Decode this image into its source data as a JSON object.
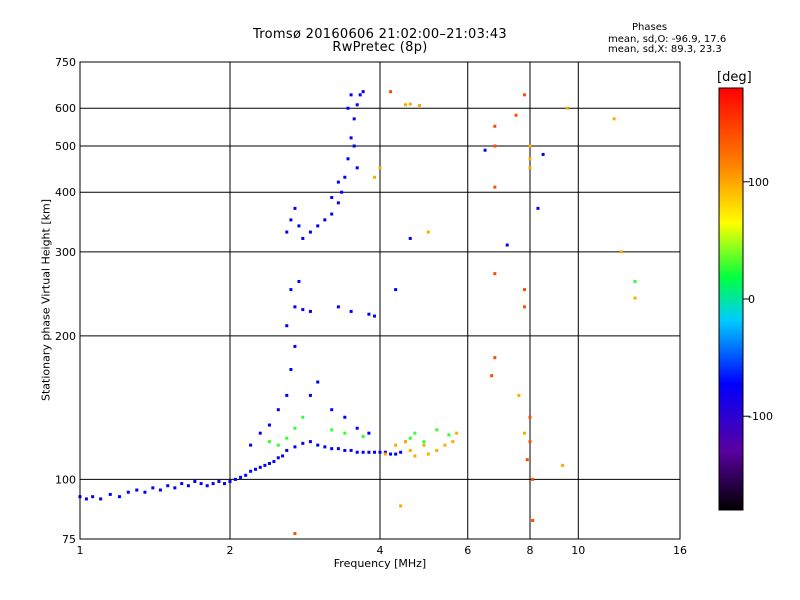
{
  "chart_data": {
    "type": "scatter",
    "title": "Tromsø 20160606 21:02:00–21:03:43",
    "subtitle": "RwPretec (8p)",
    "phases_header": "Phases",
    "phases_o": "mean, sd,O: -96.9, 17.6",
    "phases_x": "mean, sd,X:  89.3, 23.3",
    "xlabel": "Frequency [MHz]",
    "ylabel": "Stationary phase Virtual Height [km]",
    "xscale": "log",
    "yscale": "log",
    "xlim": [
      1,
      16
    ],
    "ylim": [
      75,
      750
    ],
    "xticks": [
      "1",
      "2",
      "4",
      "6",
      "8",
      "10",
      "16"
    ],
    "xtick_values": [
      1,
      2,
      4,
      6,
      8,
      10,
      16
    ],
    "yticks": [
      "75",
      "100",
      "200",
      "300",
      "400",
      "500",
      "600",
      "750"
    ],
    "ytick_values": [
      75,
      100,
      200,
      300,
      400,
      500,
      600,
      750
    ],
    "grid": true,
    "colorbar": {
      "label": "[deg]",
      "range": [
        -180,
        180
      ],
      "ticks": [
        "100",
        "0",
        "-100"
      ],
      "tick_values": [
        100,
        0,
        -100
      ]
    },
    "series": [
      {
        "phase_deg": -100,
        "points": [
          [
            1.0,
            92
          ],
          [
            1.03,
            91
          ],
          [
            1.06,
            92
          ],
          [
            1.1,
            91
          ],
          [
            1.15,
            93
          ],
          [
            1.2,
            92
          ],
          [
            1.25,
            94
          ],
          [
            1.3,
            95
          ],
          [
            1.35,
            94
          ],
          [
            1.4,
            96
          ],
          [
            1.45,
            95
          ],
          [
            1.5,
            97
          ],
          [
            1.55,
            96
          ],
          [
            1.6,
            98
          ],
          [
            1.65,
            97
          ],
          [
            1.7,
            99
          ],
          [
            1.75,
            98
          ],
          [
            1.8,
            97
          ],
          [
            1.85,
            98
          ],
          [
            1.9,
            99
          ],
          [
            1.95,
            98
          ],
          [
            2.0,
            99
          ],
          [
            2.05,
            100
          ],
          [
            2.1,
            101
          ],
          [
            2.15,
            102
          ],
          [
            2.2,
            104
          ],
          [
            2.25,
            105
          ],
          [
            2.3,
            106
          ],
          [
            2.35,
            107
          ],
          [
            2.4,
            108
          ],
          [
            2.45,
            109
          ],
          [
            2.5,
            111
          ],
          [
            2.55,
            112
          ],
          [
            2.6,
            115
          ],
          [
            2.7,
            117
          ],
          [
            2.8,
            119
          ],
          [
            2.9,
            120
          ],
          [
            3.0,
            118
          ],
          [
            3.1,
            117
          ],
          [
            3.2,
            116
          ],
          [
            3.3,
            116
          ],
          [
            3.4,
            115
          ],
          [
            3.5,
            115
          ],
          [
            3.6,
            114
          ],
          [
            3.7,
            114
          ],
          [
            3.8,
            114
          ],
          [
            3.9,
            114
          ],
          [
            4.0,
            114
          ],
          [
            4.1,
            114
          ],
          [
            4.2,
            113
          ],
          [
            4.3,
            113
          ],
          [
            4.4,
            114
          ],
          [
            2.6,
            150
          ],
          [
            2.65,
            170
          ],
          [
            2.7,
            190
          ],
          [
            2.6,
            210
          ],
          [
            2.7,
            230
          ],
          [
            2.65,
            250
          ],
          [
            2.75,
            260
          ],
          [
            2.9,
            150
          ],
          [
            3.0,
            160
          ],
          [
            3.2,
            140
          ],
          [
            3.4,
            135
          ],
          [
            3.6,
            128
          ],
          [
            3.8,
            125
          ],
          [
            2.5,
            140
          ],
          [
            2.4,
            130
          ],
          [
            2.3,
            125
          ],
          [
            2.2,
            118
          ],
          [
            2.6,
            330
          ],
          [
            2.65,
            350
          ],
          [
            2.7,
            370
          ],
          [
            2.75,
            340
          ],
          [
            2.8,
            320
          ],
          [
            2.9,
            330
          ],
          [
            3.0,
            340
          ],
          [
            3.1,
            350
          ],
          [
            3.2,
            360
          ],
          [
            3.3,
            380
          ],
          [
            3.35,
            400
          ],
          [
            3.4,
            430
          ],
          [
            3.45,
            470
          ],
          [
            3.5,
            520
          ],
          [
            3.55,
            570
          ],
          [
            3.6,
            610
          ],
          [
            3.65,
            640
          ],
          [
            3.7,
            650
          ],
          [
            3.45,
            600
          ],
          [
            3.5,
            640
          ],
          [
            3.55,
            500
          ],
          [
            3.6,
            450
          ],
          [
            3.3,
            420
          ],
          [
            3.2,
            390
          ],
          [
            3.3,
            230
          ],
          [
            3.5,
            225
          ],
          [
            3.8,
            222
          ],
          [
            4.3,
            250
          ],
          [
            4.6,
            320
          ],
          [
            7.2,
            310
          ],
          [
            8.3,
            370
          ],
          [
            8.5,
            480
          ],
          [
            6.5,
            490
          ],
          [
            3.9,
            220
          ],
          [
            2.8,
            227
          ],
          [
            2.9,
            225
          ]
        ]
      },
      {
        "phase_deg": 30,
        "points": [
          [
            2.4,
            120
          ],
          [
            2.5,
            118
          ],
          [
            2.6,
            122
          ],
          [
            2.7,
            128
          ],
          [
            2.8,
            135
          ],
          [
            3.2,
            127
          ],
          [
            3.4,
            125
          ],
          [
            3.7,
            123
          ],
          [
            4.5,
            120
          ],
          [
            4.6,
            122
          ],
          [
            4.7,
            125
          ],
          [
            4.9,
            120
          ],
          [
            5.2,
            127
          ],
          [
            5.5,
            124
          ],
          [
            13.0,
            260
          ]
        ]
      },
      {
        "phase_deg": 110,
        "points": [
          [
            4.1,
            113
          ],
          [
            4.3,
            118
          ],
          [
            4.5,
            120
          ],
          [
            4.6,
            115
          ],
          [
            4.7,
            112
          ],
          [
            4.9,
            118
          ],
          [
            5.0,
            113
          ],
          [
            5.2,
            115
          ],
          [
            5.4,
            118
          ],
          [
            5.6,
            120
          ],
          [
            5.7,
            125
          ],
          [
            4.5,
            610
          ],
          [
            4.6,
            612
          ],
          [
            4.8,
            608
          ],
          [
            3.9,
            430
          ],
          [
            4.0,
            450
          ],
          [
            5.0,
            330
          ],
          [
            8.0,
            500
          ],
          [
            8.0,
            470
          ],
          [
            8.0,
            450
          ],
          [
            9.5,
            600
          ],
          [
            11.8,
            570
          ],
          [
            12.2,
            300
          ],
          [
            13.0,
            240
          ],
          [
            9.3,
            107
          ],
          [
            7.6,
            150
          ],
          [
            7.8,
            125
          ],
          [
            4.4,
            88
          ]
        ]
      },
      {
        "phase_deg": 150,
        "points": [
          [
            6.8,
            270
          ],
          [
            7.8,
            250
          ],
          [
            7.8,
            230
          ],
          [
            6.8,
            180
          ],
          [
            6.7,
            165
          ],
          [
            7.8,
            640
          ],
          [
            7.5,
            580
          ],
          [
            6.8,
            550
          ],
          [
            6.8,
            500
          ],
          [
            8.1,
            82
          ],
          [
            8.1,
            100
          ],
          [
            7.9,
            110
          ],
          [
            8.0,
            120
          ],
          [
            8.0,
            135
          ],
          [
            2.7,
            77
          ],
          [
            4.2,
            650
          ],
          [
            6.8,
            410
          ]
        ]
      }
    ]
  }
}
